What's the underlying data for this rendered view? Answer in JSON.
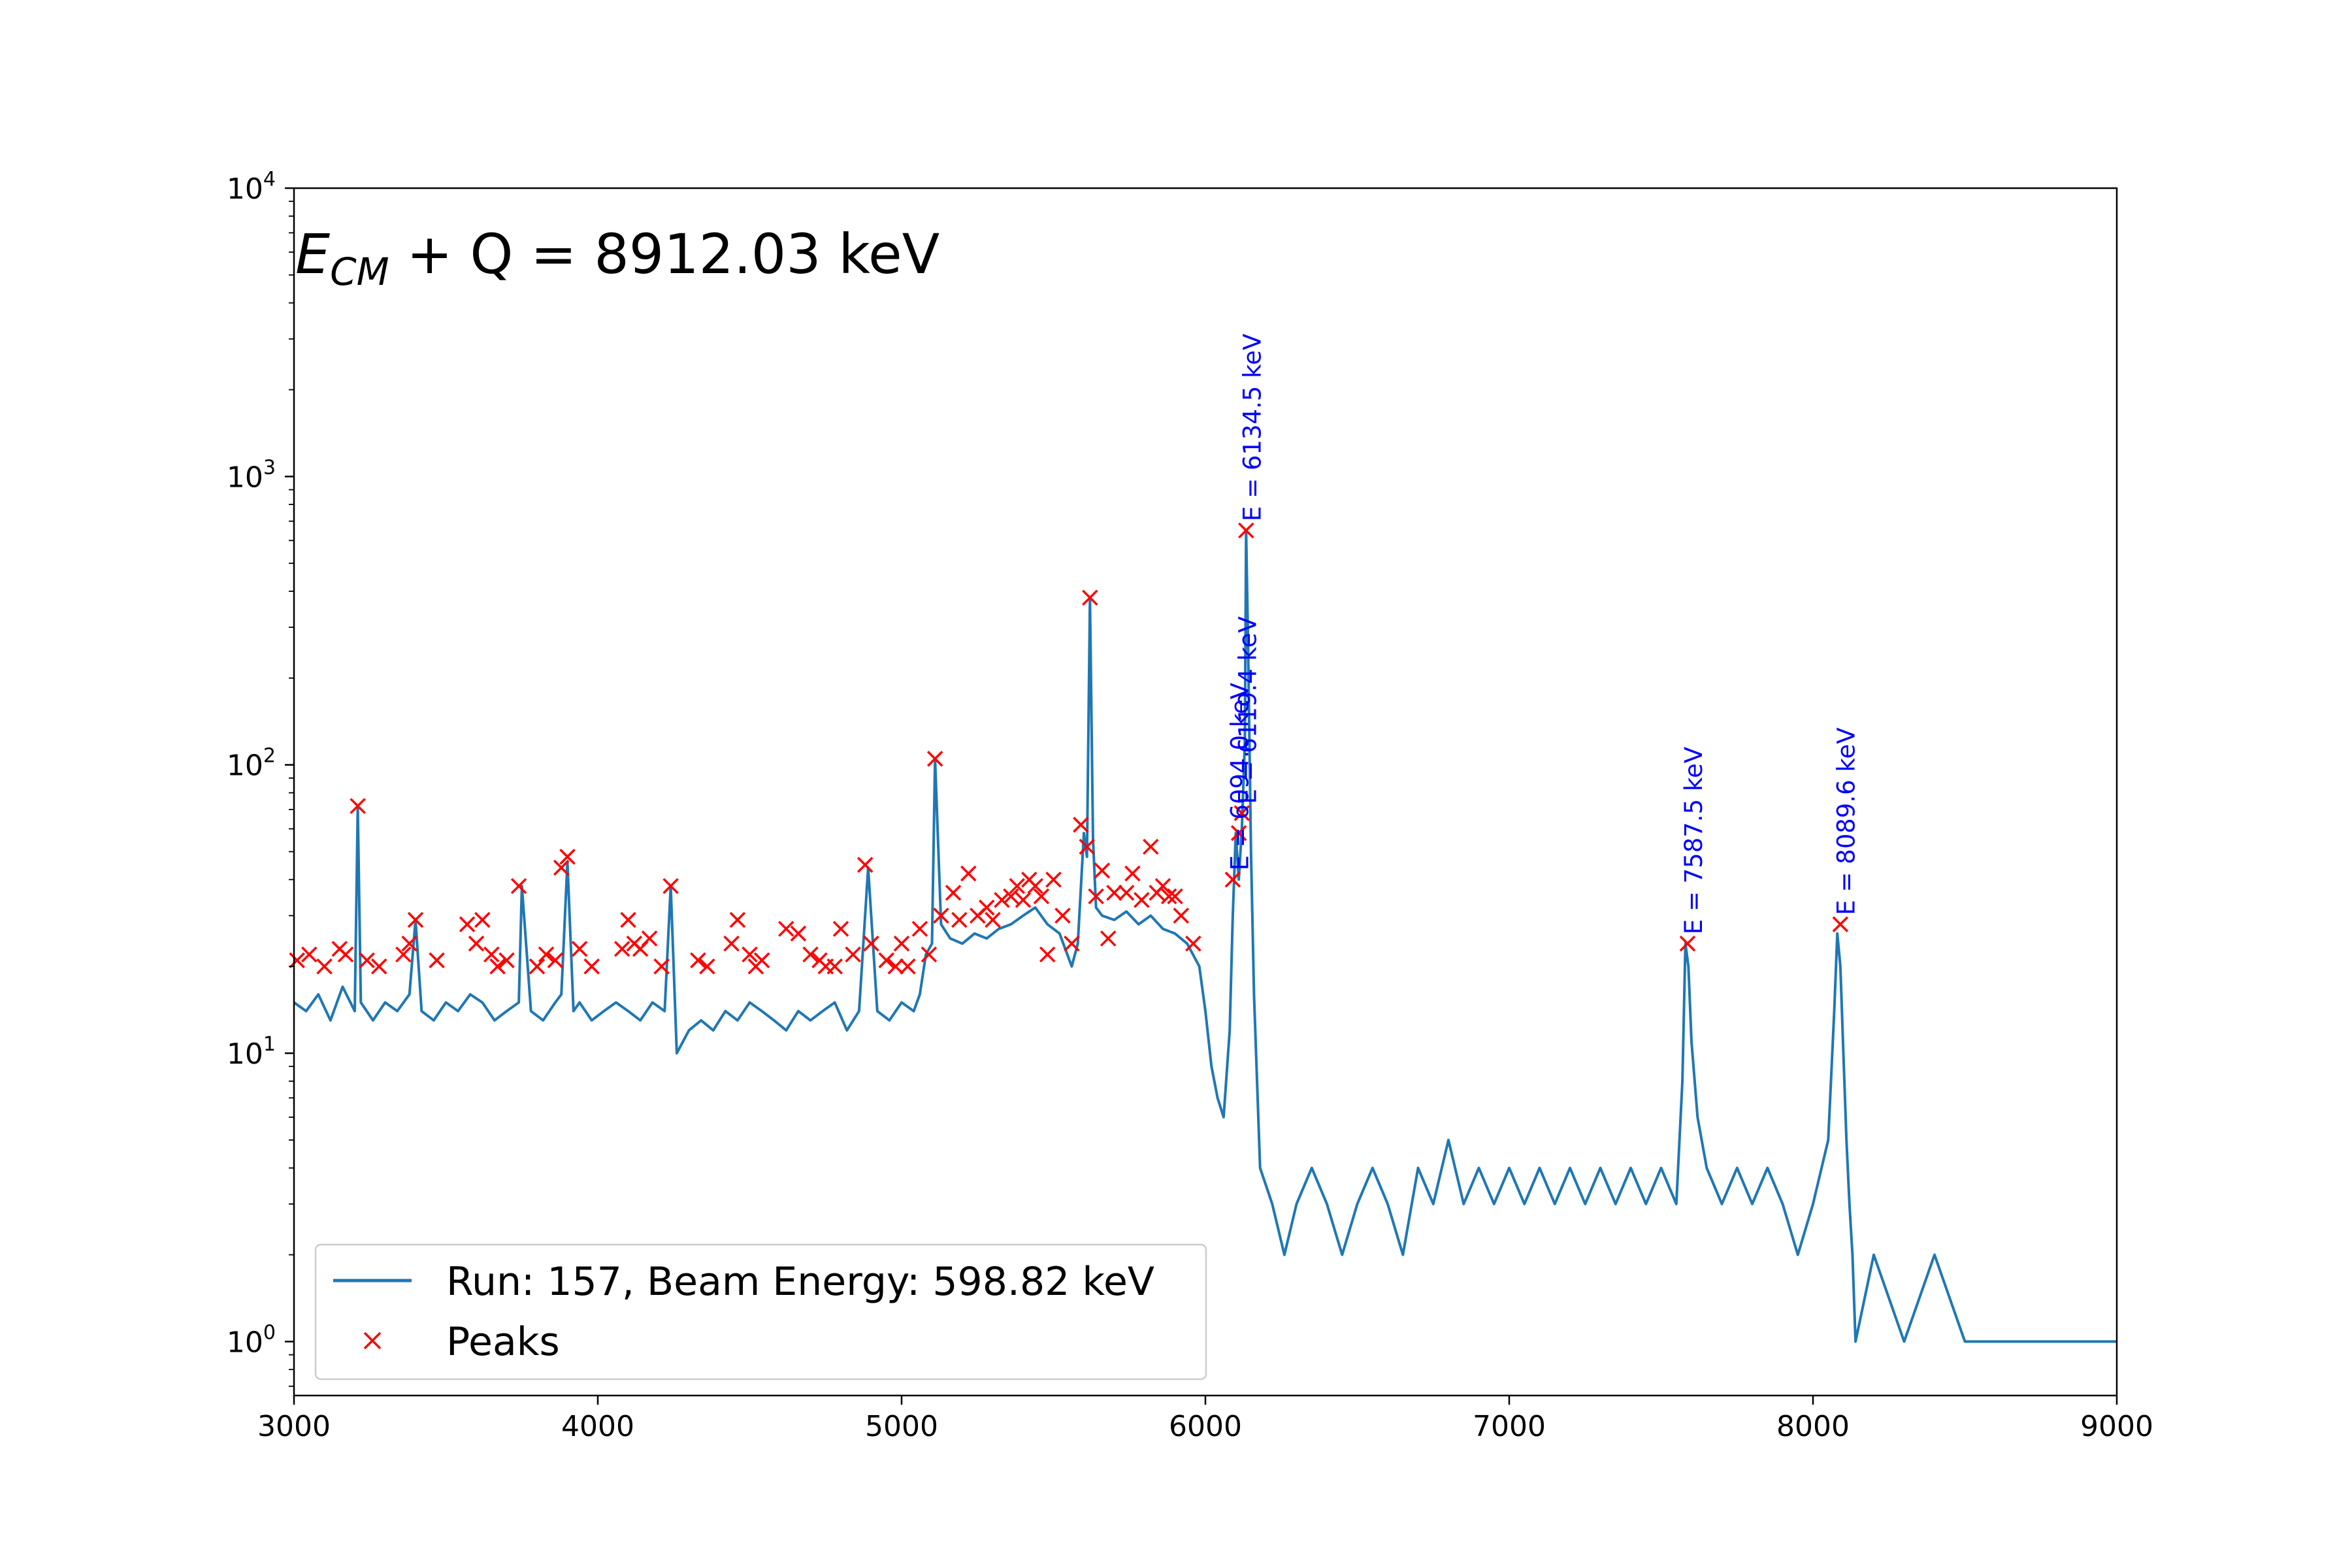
{
  "chart_data": {
    "type": "line",
    "title": {
      "main": "E",
      "sub": "CM",
      "rest": " + Q = 8912.03 keV"
    },
    "xlabel": "",
    "ylabel": "",
    "xlim": [
      3000,
      9000
    ],
    "ylim": [
      0.65,
      10000
    ],
    "yscale": "log",
    "grid": false,
    "legend_position": "lower-left",
    "x_ticks": [
      {
        "value": 3000,
        "label": "3000"
      },
      {
        "value": 4000,
        "label": "4000"
      },
      {
        "value": 5000,
        "label": "5000"
      },
      {
        "value": 6000,
        "label": "6000"
      },
      {
        "value": 7000,
        "label": "7000"
      },
      {
        "value": 8000,
        "label": "8000"
      },
      {
        "value": 9000,
        "label": "9000"
      }
    ],
    "y_ticks": [
      {
        "value": 1,
        "base": "10",
        "exp": "0"
      },
      {
        "value": 10,
        "base": "10",
        "exp": "1"
      },
      {
        "value": 100,
        "base": "10",
        "exp": "2"
      },
      {
        "value": 1000,
        "base": "10",
        "exp": "3"
      },
      {
        "value": 10000,
        "base": "10",
        "exp": "4"
      }
    ],
    "series": [
      {
        "name": "Run: 157, Beam Energy: 598.82 keV",
        "style": "line",
        "color": "#1f77b4",
        "x": [
          3000,
          3040,
          3080,
          3120,
          3160,
          3200,
          3210,
          3220,
          3260,
          3300,
          3340,
          3380,
          3400,
          3420,
          3460,
          3500,
          3540,
          3580,
          3620,
          3660,
          3700,
          3740,
          3750,
          3780,
          3820,
          3860,
          3880,
          3900,
          3920,
          3940,
          3980,
          4020,
          4060,
          4100,
          4140,
          4180,
          4220,
          4240,
          4260,
          4300,
          4340,
          4380,
          4420,
          4460,
          4500,
          4540,
          4580,
          4620,
          4660,
          4700,
          4740,
          4780,
          4820,
          4860,
          4890,
          4920,
          4960,
          5000,
          5040,
          5060,
          5080,
          5100,
          5110,
          5130,
          5160,
          5200,
          5240,
          5280,
          5320,
          5360,
          5400,
          5440,
          5480,
          5520,
          5560,
          5580,
          5600,
          5610,
          5620,
          5630,
          5640,
          5660,
          5700,
          5740,
          5780,
          5820,
          5860,
          5900,
          5940,
          5980,
          6000,
          6020,
          6040,
          6060,
          6080,
          6090,
          6100,
          6110,
          6120,
          6130,
          6134,
          6140,
          6150,
          6160,
          6180,
          6220,
          6260,
          6300,
          6350,
          6400,
          6450,
          6500,
          6550,
          6600,
          6650,
          6700,
          6750,
          6800,
          6850,
          6900,
          6950,
          7000,
          7050,
          7100,
          7150,
          7200,
          7250,
          7300,
          7350,
          7400,
          7450,
          7500,
          7550,
          7570,
          7580,
          7590,
          7600,
          7620,
          7650,
          7700,
          7750,
          7800,
          7850,
          7900,
          7950,
          8000,
          8050,
          8070,
          8080,
          8090,
          8100,
          8110,
          8120,
          8130,
          8140,
          8200,
          8300,
          8400,
          8500,
          8600,
          8700,
          8800,
          8900,
          9000
        ],
        "y": [
          15,
          14,
          16,
          13,
          17,
          14,
          72,
          15,
          13,
          15,
          14,
          16,
          29,
          14,
          13,
          15,
          14,
          16,
          15,
          13,
          14,
          15,
          38,
          14,
          13,
          15,
          16,
          46,
          14,
          15,
          13,
          14,
          15,
          14,
          13,
          15,
          14,
          38,
          10,
          12,
          13,
          12,
          14,
          13,
          15,
          14,
          13,
          12,
          14,
          13,
          14,
          15,
          12,
          14,
          44,
          14,
          13,
          15,
          14,
          16,
          22,
          24,
          105,
          28,
          25,
          24,
          26,
          25,
          27,
          28,
          30,
          32,
          28,
          26,
          20,
          24,
          58,
          48,
          380,
          55,
          32,
          30,
          29,
          31,
          28,
          30,
          27,
          26,
          24,
          20,
          14,
          9,
          7,
          6,
          12,
          30,
          58,
          40,
          60,
          120,
          650,
          280,
          50,
          16,
          4,
          3,
          2,
          3,
          4,
          3,
          2,
          3,
          4,
          3,
          2,
          4,
          3,
          5,
          3,
          4,
          3,
          4,
          3,
          4,
          3,
          4,
          3,
          4,
          3,
          4,
          3,
          4,
          3,
          8,
          24,
          20,
          11,
          6,
          4,
          3,
          4,
          3,
          4,
          3,
          2,
          3,
          5,
          14,
          26,
          20,
          10,
          5,
          3,
          2,
          1,
          2,
          1,
          2,
          1,
          1,
          1,
          1,
          1,
          1
        ]
      },
      {
        "name": "Peaks",
        "style": "marker-x",
        "color": "#ff0000",
        "x": [
          3010,
          3050,
          3100,
          3150,
          3170,
          3210,
          3240,
          3280,
          3360,
          3380,
          3400,
          3470,
          3570,
          3600,
          3620,
          3650,
          3670,
          3700,
          3740,
          3800,
          3830,
          3860,
          3880,
          3900,
          3940,
          3980,
          4080,
          4100,
          4120,
          4140,
          4170,
          4210,
          4240,
          4330,
          4360,
          4440,
          4460,
          4500,
          4520,
          4540,
          4620,
          4660,
          4700,
          4730,
          4750,
          4780,
          4800,
          4840,
          4880,
          4900,
          4950,
          4980,
          5000,
          5020,
          5060,
          5090,
          5110,
          5130,
          5170,
          5190,
          5220,
          5250,
          5280,
          5300,
          5330,
          5360,
          5380,
          5400,
          5420,
          5440,
          5460,
          5480,
          5500,
          5530,
          5560,
          5590,
          5610,
          5620,
          5640,
          5660,
          5680,
          5700,
          5740,
          5760,
          5790,
          5820,
          5840,
          5860,
          5880,
          5900,
          5920,
          5960,
          6090,
          6110,
          6120,
          6134,
          7587,
          8090
        ],
        "y": [
          21,
          22,
          20,
          23,
          22,
          72,
          21,
          20,
          22,
          24,
          29,
          21,
          28,
          24,
          29,
          22,
          20,
          21,
          38,
          20,
          22,
          21,
          44,
          48,
          23,
          20,
          23,
          29,
          24,
          23,
          25,
          20,
          38,
          21,
          20,
          24,
          29,
          22,
          20,
          21,
          27,
          26,
          22,
          21,
          20,
          20,
          27,
          22,
          45,
          24,
          21,
          20,
          24,
          20,
          27,
          22,
          105,
          30,
          36,
          29,
          42,
          30,
          32,
          29,
          34,
          35,
          38,
          34,
          40,
          38,
          35,
          22,
          40,
          30,
          24,
          62,
          52,
          380,
          35,
          43,
          25,
          36,
          36,
          42,
          34,
          52,
          36,
          38,
          35,
          35,
          30,
          24,
          40,
          58,
          68,
          650,
          24,
          28
        ]
      }
    ],
    "annotations": [
      {
        "text": "E = 6094.0 keV",
        "x": 6094
      },
      {
        "text": "E = 6119.4 keV",
        "x": 6119.4
      },
      {
        "text": "E = 6134.5 keV",
        "x": 6134.5
      },
      {
        "text": "E = 7587.5 keV",
        "x": 7587.5
      },
      {
        "text": "E = 8089.6 keV",
        "x": 8089.6
      }
    ]
  }
}
